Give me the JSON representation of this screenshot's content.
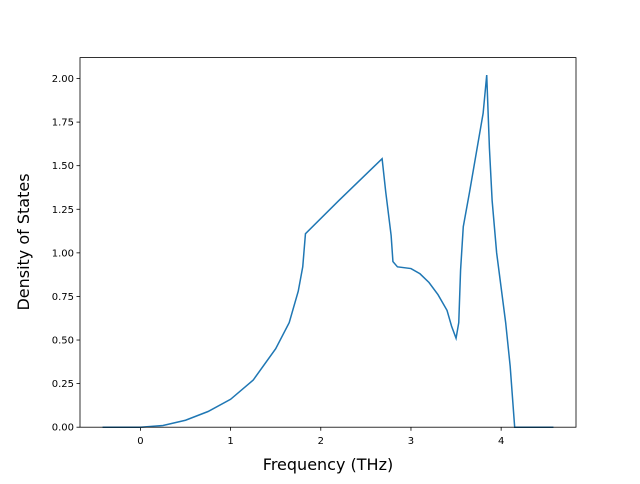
{
  "chart_data": {
    "type": "line",
    "x_label": "Frequency (THz)",
    "y_label": "Density of States",
    "xlim": [
      -0.67,
      4.83
    ],
    "ylim": [
      0,
      2.12
    ],
    "xticks": [
      0,
      1,
      2,
      3,
      4
    ],
    "yticks": [
      {
        "value": 0,
        "label": "0.00"
      },
      {
        "value": 0.25,
        "label": "0.25"
      },
      {
        "value": 0.5,
        "label": "0.50"
      },
      {
        "value": 0.75,
        "label": "0.75"
      },
      {
        "value": 1,
        "label": "1.00"
      },
      {
        "value": 1.25,
        "label": "1.25"
      },
      {
        "value": 1.5,
        "label": "1.50"
      },
      {
        "value": 1.75,
        "label": "1.75"
      },
      {
        "value": 2,
        "label": "2.00"
      }
    ],
    "grid": false,
    "x": [
      -0.42,
      0,
      0.25,
      0.5,
      0.75,
      1.0,
      1.25,
      1.5,
      1.65,
      1.75,
      1.8,
      1.83,
      2.2,
      2.68,
      2.72,
      2.78,
      2.8,
      2.85,
      3.0,
      3.1,
      3.2,
      3.3,
      3.4,
      3.45,
      3.5,
      3.53,
      3.55,
      3.58,
      3.65,
      3.75,
      3.8,
      3.84,
      3.87,
      3.9,
      3.95,
      4.05,
      4.1,
      4.15,
      4.58
    ],
    "series": [
      {
        "color": "#1f77b4",
        "values": [
          0,
          0,
          0.01,
          0.04,
          0.09,
          0.16,
          0.27,
          0.45,
          0.6,
          0.78,
          0.92,
          1.11,
          1.3,
          1.54,
          1.35,
          1.1,
          0.95,
          0.92,
          0.91,
          0.88,
          0.83,
          0.76,
          0.67,
          0.58,
          0.51,
          0.6,
          0.9,
          1.15,
          1.35,
          1.65,
          1.8,
          2.02,
          1.6,
          1.3,
          1.0,
          0.6,
          0.35,
          0,
          0
        ]
      }
    ]
  }
}
